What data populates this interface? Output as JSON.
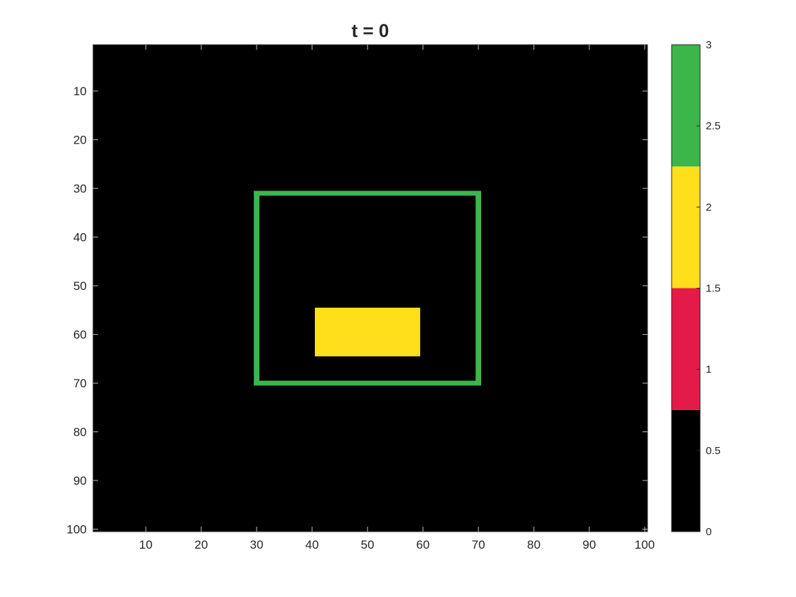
{
  "chart_data": {
    "type": "heatmap",
    "title": "t = 0",
    "xlabel": "",
    "ylabel": "",
    "grid_size": [
      100,
      100
    ],
    "xlim": [
      0.5,
      100.5
    ],
    "ylim": [
      0.5,
      100.5
    ],
    "y_direction": "reverse",
    "x_ticks": [
      10,
      20,
      30,
      40,
      50,
      60,
      70,
      80,
      90,
      100
    ],
    "y_ticks": [
      10,
      20,
      30,
      40,
      50,
      60,
      70,
      80,
      90,
      100
    ],
    "background_value": 0,
    "regions": [
      {
        "name": "square border",
        "value": 3,
        "shape": "rectangle-outline",
        "rows": [
          31,
          70
        ],
        "cols": [
          30,
          70
        ],
        "thickness_cells": 1
      },
      {
        "name": "filled block",
        "value": 2,
        "shape": "rectangle-filled",
        "rows": [
          55,
          64
        ],
        "cols": [
          41,
          59
        ]
      }
    ],
    "colorbar": {
      "limits": [
        0,
        3
      ],
      "ticks": [
        0,
        0.5,
        1,
        1.5,
        2,
        2.5,
        3
      ],
      "colormap": [
        "#000000",
        "#e31a4a",
        "#ffdf1a",
        "#3cb54a"
      ]
    },
    "grid": false
  }
}
